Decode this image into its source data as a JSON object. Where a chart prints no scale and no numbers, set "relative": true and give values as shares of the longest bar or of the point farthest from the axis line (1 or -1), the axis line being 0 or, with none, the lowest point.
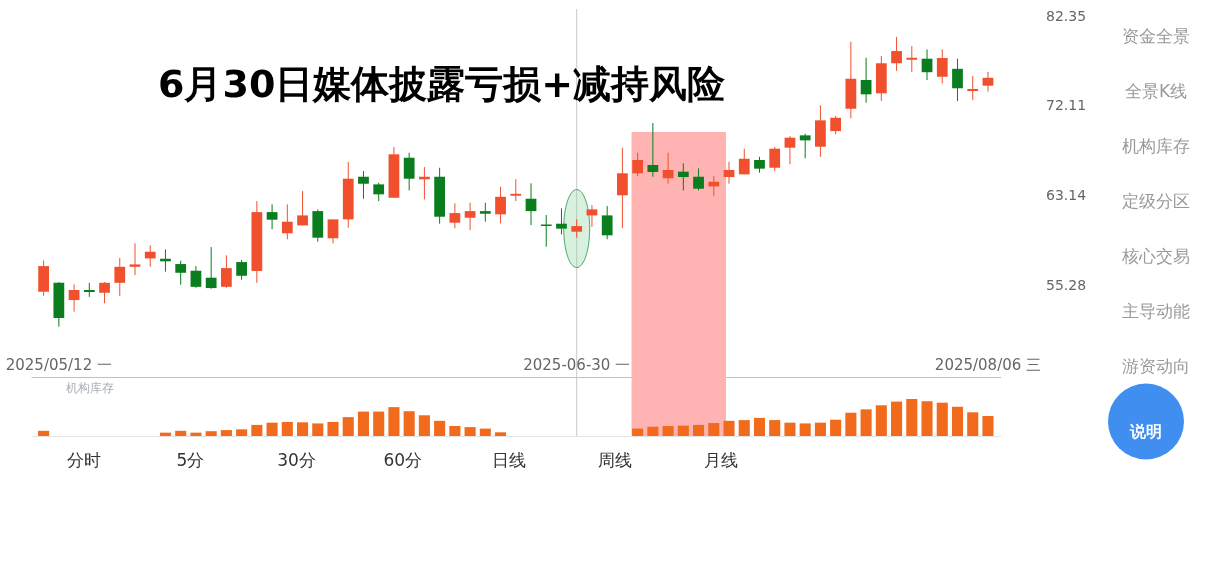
{
  "chart_data": [
    {
      "type": "candlestick",
      "title": "6月30日媒体披露亏损+减持风险",
      "categories": [
        null,
        "2025/05/12 一",
        null,
        null,
        null,
        null,
        null,
        null,
        null,
        null,
        null,
        null,
        null,
        null,
        null,
        null,
        null,
        null,
        null,
        null,
        null,
        null,
        null,
        null,
        null,
        null,
        null,
        null,
        null,
        null,
        null,
        null,
        null,
        null,
        null,
        "2025-06-30 一",
        null,
        null,
        null,
        null,
        null,
        null,
        null,
        null,
        null,
        null,
        null,
        null,
        null,
        null,
        null,
        null,
        null,
        null,
        null,
        null,
        null,
        null,
        null,
        null,
        null,
        null,
        "2025/08/06 三"
      ],
      "ohlc": [
        [
          54.76,
          57.36,
          54.43,
          56.88
        ],
        [
          55.49,
          55.55,
          52.0,
          52.67
        ],
        [
          54.09,
          55.36,
          53.17,
          54.9
        ],
        [
          54.9,
          55.49,
          54.35,
          54.74
        ],
        [
          54.68,
          55.55,
          53.83,
          55.49
        ],
        [
          55.49,
          57.58,
          54.43,
          56.82
        ],
        [
          56.82,
          58.83,
          56.13,
          57.02
        ],
        [
          57.53,
          58.65,
          56.82,
          58.1
        ],
        [
          57.5,
          58.3,
          56.41,
          57.28
        ],
        [
          57.05,
          57.33,
          55.33,
          56.32
        ],
        [
          56.49,
          56.88,
          55.08,
          55.16
        ],
        [
          55.91,
          58.5,
          55.0,
          55.06
        ],
        [
          55.16,
          57.79,
          55.08,
          56.71
        ],
        [
          57.22,
          57.41,
          55.74,
          56.07
        ],
        [
          56.47,
          62.62,
          55.49,
          61.61
        ],
        [
          61.61,
          62.32,
          60.06,
          60.92
        ],
        [
          59.71,
          62.32,
          59.18,
          60.74
        ],
        [
          60.41,
          63.56,
          60.41,
          61.31
        ],
        [
          61.7,
          61.86,
          58.97,
          59.32
        ],
        [
          59.27,
          60.95,
          58.83,
          60.95
        ],
        [
          60.95,
          66.35,
          60.2,
          64.73
        ],
        [
          64.92,
          65.47,
          62.84,
          64.25
        ],
        [
          64.19,
          64.35,
          62.62,
          63.25
        ],
        [
          62.93,
          67.84,
          62.93,
          67.11
        ],
        [
          66.77,
          67.27,
          63.62,
          64.73
        ],
        [
          64.67,
          65.86,
          62.78,
          64.92
        ],
        [
          64.92,
          65.79,
          60.56,
          61.19
        ],
        [
          60.65,
          62.41,
          60.15,
          61.52
        ],
        [
          61.1,
          62.47,
          60.0,
          61.7
        ],
        [
          61.7,
          62.47,
          60.74,
          61.46
        ],
        [
          61.41,
          63.96,
          60.59,
          63.02
        ],
        [
          63.12,
          64.67,
          62.62,
          63.3
        ],
        [
          62.84,
          64.29,
          60.44,
          61.7
        ],
        [
          60.5,
          61.34,
          58.53,
          60.35
        ],
        [
          60.56,
          61.95,
          59.62,
          60.12
        ],
        [
          59.85,
          60.95,
          59.32,
          60.35
        ],
        [
          61.31,
          62.25,
          60.29,
          61.86
        ],
        [
          61.31,
          62.16,
          59.18,
          59.53
        ],
        [
          63.16,
          67.77,
          60.15,
          65.25
        ],
        [
          65.25,
          67.27,
          64.99,
          66.55
        ],
        [
          66.06,
          70.29,
          64.92,
          65.38
        ],
        [
          64.77,
          67.27,
          64.25,
          65.57
        ],
        [
          65.41,
          66.22,
          63.62,
          64.89
        ],
        [
          64.92,
          65.73,
          63.62,
          63.78
        ],
        [
          64.0,
          64.99,
          63.09,
          64.44
        ],
        [
          64.89,
          66.38,
          64.25,
          65.57
        ],
        [
          65.15,
          67.67,
          65.15,
          66.67
        ],
        [
          66.55,
          66.87,
          65.31,
          65.7
        ],
        [
          65.79,
          67.84,
          65.47,
          67.67
        ],
        [
          67.77,
          68.95,
          66.13,
          68.78
        ],
        [
          69.02,
          69.19,
          66.71,
          68.51
        ],
        [
          67.87,
          72.15,
          66.87,
          70.57
        ],
        [
          69.46,
          71.02,
          69.12,
          70.84
        ],
        [
          71.79,
          79.28,
          70.78,
          75.05
        ],
        [
          74.91,
          77.42,
          72.43,
          73.34
        ],
        [
          73.45,
          77.62,
          72.61,
          76.79
        ],
        [
          76.79,
          79.83,
          75.93,
          78.19
        ],
        [
          77.19,
          78.77,
          75.78,
          77.42
        ],
        [
          77.31,
          78.38,
          74.91,
          75.78
        ],
        [
          75.27,
          78.38,
          74.53,
          77.39
        ],
        [
          76.16,
          77.31,
          72.61,
          74.0
        ],
        [
          73.7,
          75.35,
          72.71,
          73.92
        ],
        [
          74.28,
          75.82,
          73.63,
          75.16
        ]
      ],
      "colors": [
        "#f0502e",
        "#0a7d1e",
        "#f0502e",
        "#0a7d1e",
        "#f0502e",
        "#f0502e",
        "#f0502e",
        "#f0502e",
        "#0a7d1e",
        "#0a7d1e",
        "#0a7d1e",
        "#0a7d1e",
        "#f0502e",
        "#0a7d1e",
        "#f0502e",
        "#0a7d1e",
        "#f0502e",
        "#f0502e",
        "#0a7d1e",
        "#f0502e",
        "#f0502e",
        "#0a7d1e",
        "#0a7d1e",
        "#f0502e",
        "#0a7d1e",
        "#f0502e",
        "#0a7d1e",
        "#f0502e",
        "#f0502e",
        "#0a7d1e",
        "#f0502e",
        "#f0502e",
        "#0a7d1e",
        "#0a7d1e",
        "#0a7d1e",
        "#f0502e",
        "#f0502e",
        "#0a7d1e",
        "#f0502e",
        "#f0502e",
        "#0a7d1e",
        "#f0502e",
        "#0a7d1e",
        "#0a7d1e",
        "#f0502e",
        "#f0502e",
        "#f0502e",
        "#0a7d1e",
        "#f0502e",
        "#f0502e",
        "#0a7d1e",
        "#f0502e",
        "#f0502e",
        "#f0502e",
        "#0a7d1e",
        "#f0502e",
        "#f0502e",
        "#f0502e",
        "#0a7d1e",
        "#f0502e",
        "#0a7d1e",
        "#f0502e",
        "#f0502e"
      ],
      "ylim": [
        48.27,
        83.21
      ],
      "yticks": [
        55.28,
        63.14,
        72.11,
        82.35
      ],
      "log": true,
      "ref_lines": [
        {
          "axis": "x",
          "value": "2025-06-30 一",
          "color": "#c8c8c8"
        }
      ]
    },
    {
      "type": "bar",
      "title": "机构库存",
      "categories": [
        null,
        null,
        null,
        null,
        null,
        null,
        null,
        null,
        null,
        null,
        null,
        null,
        null,
        null,
        null,
        null,
        null,
        null,
        null,
        null,
        null,
        null,
        null,
        null,
        null,
        null,
        null,
        null,
        null,
        null,
        null,
        null,
        null,
        null,
        null,
        null,
        null,
        null,
        null,
        null,
        null,
        null,
        null,
        null,
        null,
        null,
        null,
        null,
        null,
        null,
        null,
        null,
        null,
        null,
        null,
        null,
        null,
        null,
        null,
        null,
        null,
        null,
        null
      ],
      "values": [
        0.14,
        null,
        null,
        null,
        null,
        null,
        null,
        null,
        0.09,
        0.14,
        0.09,
        0.13,
        0.16,
        0.18,
        0.3,
        0.36,
        0.38,
        0.37,
        0.34,
        0.38,
        0.51,
        0.66,
        0.66,
        0.78,
        0.67,
        0.56,
        0.41,
        0.27,
        0.24,
        0.2,
        0.1,
        null,
        null,
        null,
        null,
        null,
        null,
        null,
        null,
        0.2,
        0.25,
        0.27,
        0.28,
        0.3,
        0.35,
        0.41,
        0.43,
        0.49,
        0.43,
        0.36,
        0.34,
        0.36,
        0.44,
        0.63,
        0.72,
        0.83,
        0.93,
        1,
        0.94,
        0.9,
        0.79,
        0.64,
        0.54
      ],
      "color": "#f26a1b",
      "relative": true
    },
    {
      "type": "other",
      "annotations": [
        "分时",
        "5分",
        "30分",
        "60分",
        "日线",
        "周线",
        "月线"
      ]
    },
    {
      "type": "other",
      "annotations": [
        "资金全景",
        "全景K线",
        "机构库存",
        "定级分区",
        "核心交易",
        "主导动能",
        "游资动向",
        "说明"
      ]
    }
  ]
}
